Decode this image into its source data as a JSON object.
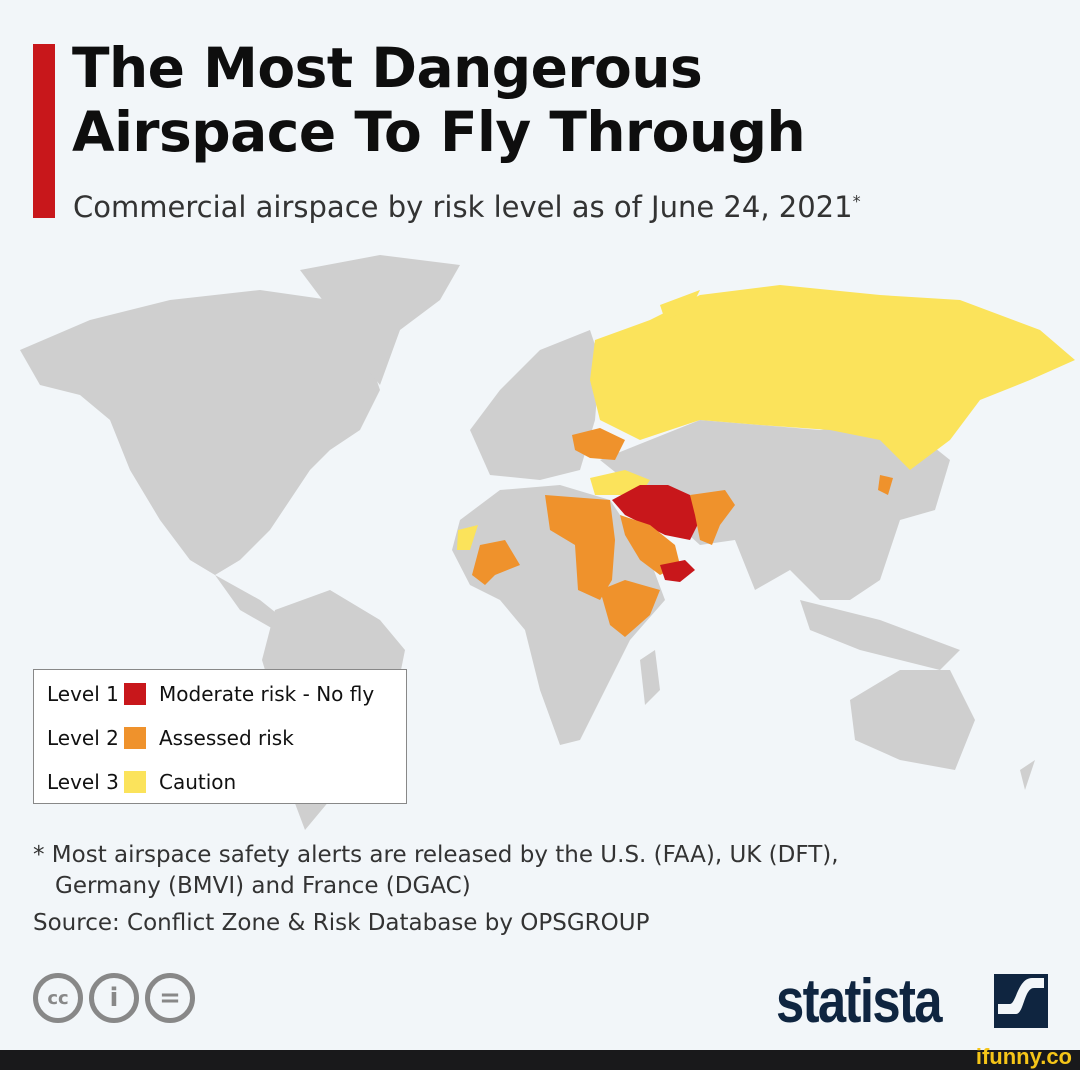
{
  "header": {
    "title_line1": "The Most Dangerous",
    "title_line2": "Airspace To Fly Through",
    "subtitle": "Commercial airspace by risk level as of June 24, 2021",
    "subtitle_mark": "*"
  },
  "colors": {
    "level1": "#c8171b",
    "level2": "#ef922c",
    "level3": "#fbe35b",
    "land": "#cfcfcf",
    "accent": "#c8171b",
    "background": "#f2f6f9"
  },
  "legend": [
    {
      "level": "Level 1",
      "label": "Moderate risk - No fly",
      "color": "#c8171b"
    },
    {
      "level": "Level 2",
      "label": "Assessed risk",
      "color": "#ef922c"
    },
    {
      "level": "Level 3",
      "label": "Caution",
      "color": "#fbe35b"
    }
  ],
  "map": {
    "regions": [
      {
        "name": "Russia",
        "level": 3
      },
      {
        "name": "Ukraine",
        "level": 2
      },
      {
        "name": "Caucasus",
        "level": 3
      },
      {
        "name": "Iran / Iraq / Syria",
        "level": 1
      },
      {
        "name": "Afghanistan / Pakistan",
        "level": 2
      },
      {
        "name": "Saudi Arabia",
        "level": 2
      },
      {
        "name": "Egypt / Sudan / Libya",
        "level": 2
      },
      {
        "name": "Yemen",
        "level": 1
      },
      {
        "name": "Mali",
        "level": 2
      },
      {
        "name": "Western Sahara",
        "level": 3
      },
      {
        "name": "East Africa",
        "level": 2
      },
      {
        "name": "North Korea",
        "level": 2
      }
    ]
  },
  "footnote": {
    "line1": "* Most airspace safety alerts are released by the U.S. (FAA), UK (DFT),",
    "line2": "Germany (BMVI) and France (DGAC)"
  },
  "source": "Source: Conflict Zone & Risk Database by OPSGROUP",
  "license_icons": [
    "cc-icon",
    "attribution-icon",
    "no-derivatives-icon"
  ],
  "license_glyphs": {
    "cc": "cc",
    "by": "i",
    "nd": "="
  },
  "brand": {
    "name": "statista"
  },
  "watermark": "ifunny.co"
}
